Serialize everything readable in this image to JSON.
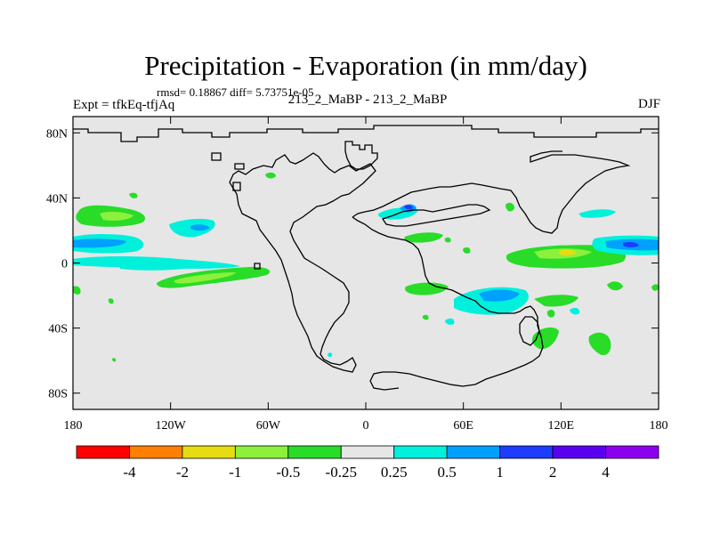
{
  "header": {
    "title": "Precipitation - Evaporation (in mm/day)",
    "stats": "rmsd= 0.18867 diff= 5.73751e-05",
    "left_label": "Expt = tfkEq-tfjAq",
    "center_label": "213_2_MaBP - 213_2_MaBP",
    "right_label": "DJF"
  },
  "chart_data": {
    "type": "heatmap",
    "title": "Precipitation - Evaporation (in mm/day)",
    "x_ticks": [
      "180",
      "120W",
      "60W",
      "0",
      "60E",
      "120E",
      "180"
    ],
    "y_ticks": [
      "80N",
      "40N",
      "0",
      "40S",
      "80S"
    ],
    "xlim": [
      -180,
      180
    ],
    "ylim": [
      -90,
      90
    ],
    "colorbar": {
      "levels": [
        "-4",
        "-2",
        "-1",
        "-0.5",
        "-0.25",
        "0.25",
        "0.5",
        "1",
        "2",
        "4"
      ],
      "colors": [
        "#ff0000",
        "#ff8000",
        "#e6dc12",
        "#8cf03c",
        "#28dc28",
        "#e6e6e6",
        "#00f0dc",
        "#00a0ff",
        "#1e3cff",
        "#5a00f0",
        "#8c00f0"
      ]
    },
    "background_color": "#e6e6e6",
    "regions": [
      {
        "lon": -165,
        "lat": 30,
        "class": "-0.5 to -0.25"
      },
      {
        "lon": -167,
        "lat": 13,
        "class": "0.5 to 1"
      },
      {
        "lon": -150,
        "lat": 14,
        "class": "1 to 2"
      },
      {
        "lon": -120,
        "lat": 24,
        "class": "0.25 to 0.5"
      },
      {
        "lon": -150,
        "lat": 2,
        "class": "0.25 to 0.5"
      },
      {
        "lon": -110,
        "lat": -8,
        "class": "-0.5 to -0.25"
      },
      {
        "lon": -112,
        "lat": -10,
        "class": "-1 to -0.5"
      },
      {
        "lon": 30,
        "lat": 35,
        "class": "1 to 2"
      },
      {
        "lon": 60,
        "lat": 22,
        "class": "-0.5 to -0.25"
      },
      {
        "lon": 130,
        "lat": 5,
        "class": "-0.5 to -0.25"
      },
      {
        "lon": 135,
        "lat": 6,
        "class": "-2 to -1"
      },
      {
        "lon": 160,
        "lat": 13,
        "class": "0.5 to 1"
      },
      {
        "lon": 165,
        "lat": 12,
        "class": "2 to 4"
      },
      {
        "lon": 70,
        "lat": -22,
        "class": "0.5 to 1"
      },
      {
        "lon": 150,
        "lat": -48,
        "class": "-0.5 to -0.25"
      }
    ]
  },
  "colors": {
    "frame": "#000000",
    "coast": "#000000",
    "background": "#e6e6e6"
  }
}
